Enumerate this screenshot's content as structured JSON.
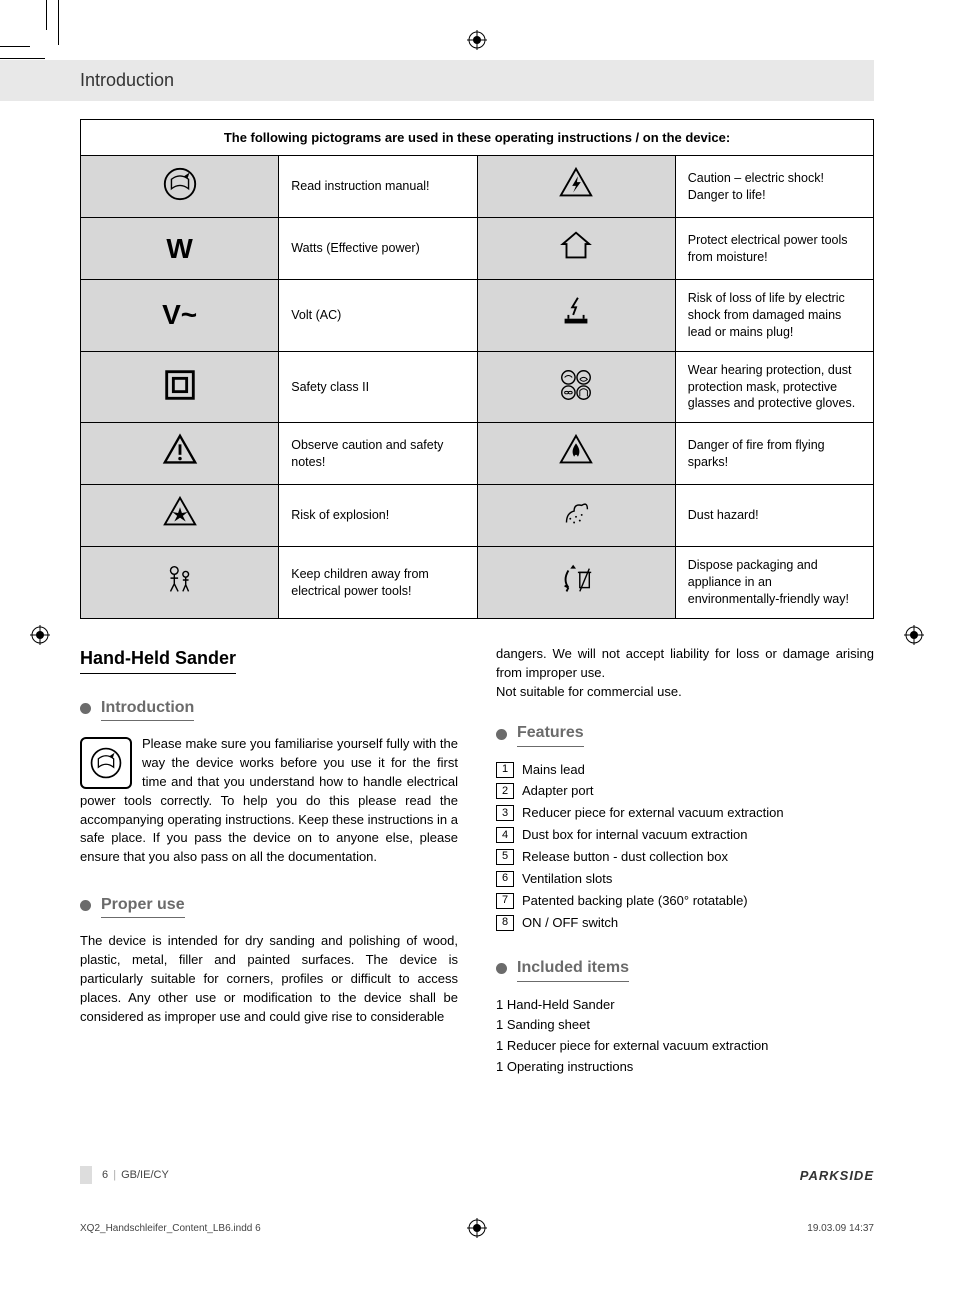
{
  "header": {
    "title": "Introduction"
  },
  "pictograms": {
    "heading": "The following pictograms are used in these operating instructions / on the device:",
    "rows": [
      {
        "leftIcon": "read-manual",
        "leftText": "Read instruction manual!",
        "rightIcon": "shock",
        "rightText": "Caution – electric shock!\nDanger to life!"
      },
      {
        "leftIcon": "W",
        "leftText": "Watts (Effective power)",
        "rightIcon": "house",
        "rightText": "Protect electrical power tools from moisture!"
      },
      {
        "leftIcon": "V~",
        "leftText": "Volt (AC)",
        "rightIcon": "bolt-plug",
        "rightText": "Risk of loss of life by electric shock from damaged mains lead or mains plug!"
      },
      {
        "leftIcon": "class2",
        "leftText": "Safety class II",
        "rightIcon": "ppe",
        "rightText": "Wear hearing protection, dust protection mask, protective glasses and protective gloves."
      },
      {
        "leftIcon": "caution",
        "leftText": "Observe caution and safety notes!",
        "rightIcon": "fire",
        "rightText": "Danger of fire from flying sparks!"
      },
      {
        "leftIcon": "explosion",
        "leftText": "Risk of explosion!",
        "rightIcon": "dust",
        "rightText": "Dust hazard!"
      },
      {
        "leftIcon": "children",
        "leftText": "Keep children away from electrical power tools!",
        "rightIcon": "recycle",
        "rightText": "Dispose packaging and appliance in an environmentally-friendly way!"
      }
    ]
  },
  "content": {
    "title": "Hand-Held Sander",
    "sections": {
      "introduction": {
        "heading": "Introduction",
        "text": "Please make sure you familiarise yourself fully with the way the device works before you use it for the first time and that you understand how to handle electrical power tools correctly. To help you do this please read the accompanying operating instructions. Keep these instructions in a safe place. If you pass the device on to anyone else, please ensure that you also pass on all the documentation."
      },
      "proper_use": {
        "heading": "Proper use",
        "text1": "The device is intended for dry sanding and polishing of wood, plastic, metal, filler and painted surfaces. The device is particularly suitable for corners, profiles or difficult to access places. Any other use or modification to the device shall be considered as improper use and could give rise to considerable",
        "text2": "dangers. We will not accept liability for loss or damage arising from improper use.\nNot suitable for commercial use."
      },
      "features": {
        "heading": "Features",
        "items": [
          "Mains lead",
          "Adapter port",
          "Reducer piece for external vacuum extraction",
          "Dust box for internal vacuum extraction",
          "Release button - dust collection box",
          "Ventilation slots",
          "Patented backing plate (360° rotatable)",
          "ON / OFF switch"
        ]
      },
      "included": {
        "heading": "Included items",
        "items": [
          "1 Hand-Held Sander",
          "1 Sanding sheet",
          "1 Reducer piece for external vacuum extraction",
          "1 Operating instructions"
        ]
      }
    }
  },
  "footer": {
    "page_num": "6",
    "region": "GB/IE/CY",
    "brand": "PARKSIDE"
  },
  "imprint": {
    "file": "XQ2_Handschleifer_Content_LB6.indd   6",
    "timestamp": "19.03.09   14:37"
  },
  "colors": {
    "band_bg": "#e8e8e8",
    "icon_cell_bg": "#d7d7d7",
    "bullet": "#6b6b6b"
  }
}
